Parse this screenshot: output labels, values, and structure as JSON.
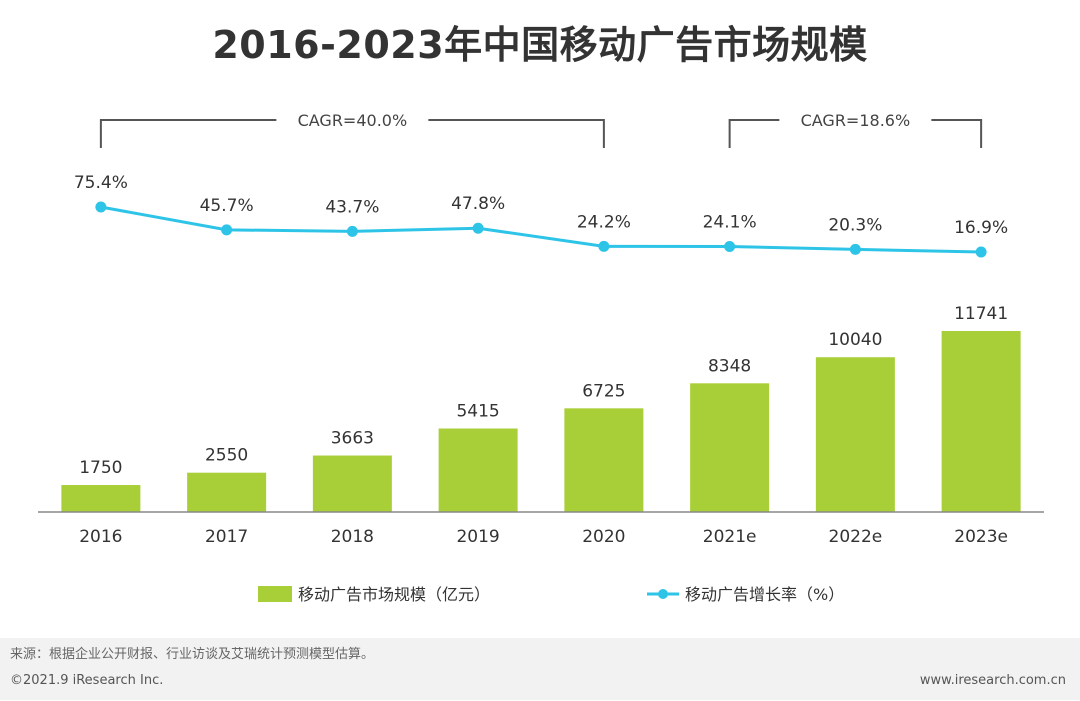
{
  "title": "2016-2023年中国移动广告市场规模",
  "chart_data": {
    "type": "bar",
    "categories": [
      "2016",
      "2017",
      "2018",
      "2019",
      "2020",
      "2021e",
      "2022e",
      "2023e"
    ],
    "series": [
      {
        "name": "移动广告市场规模（亿元）",
        "type": "bar",
        "values": [
          1750,
          2550,
          3663,
          5415,
          6725,
          8348,
          10040,
          11741
        ],
        "labels": [
          "1750",
          "2550",
          "3663",
          "5415",
          "6725",
          "8348",
          "10040",
          "11741"
        ],
        "color": "#a9cf38"
      },
      {
        "name": "移动广告增长率（%）",
        "type": "line",
        "values": [
          75.4,
          45.7,
          43.7,
          47.8,
          24.2,
          24.1,
          20.3,
          16.9
        ],
        "labels": [
          "75.4%",
          "45.7%",
          "43.7%",
          "47.8%",
          "24.2%",
          "24.1%",
          "20.3%",
          "16.9%"
        ],
        "color": "#2ec4e8"
      }
    ],
    "annotations": [
      {
        "text": "CAGR=40.0%",
        "from": "2016",
        "to": "2020"
      },
      {
        "text": "CAGR=18.6%",
        "from": "2021e",
        "to": "2023e"
      }
    ],
    "grid": false,
    "legend_position": "bottom"
  },
  "footer": {
    "source": "来源：根据企业公开财报、行业访谈及艾瑞统计预测模型估算。",
    "copyright": "©2021.9 iResearch Inc.",
    "website": "www.iresearch.com.cn"
  }
}
